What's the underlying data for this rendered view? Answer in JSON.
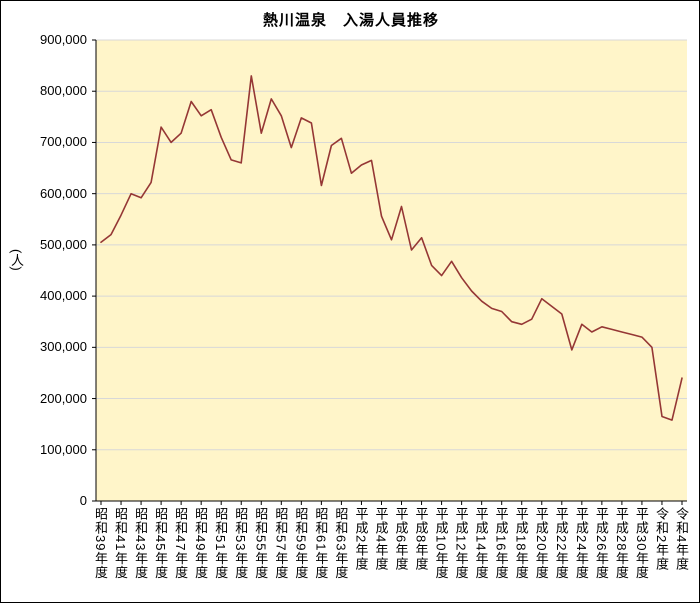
{
  "chart_data": {
    "type": "line",
    "title": "熱川温泉　入湯人員推移",
    "ylabel": "(人)",
    "ylim": [
      0,
      900000
    ],
    "ytick_step": 100000,
    "grid": true,
    "legend": "none",
    "plot_bg": "#FFF5C9",
    "grid_color": "#D8D8D8",
    "line_color": "#953735",
    "axis_color": "#000000",
    "y_tick_labels": [
      "900,000",
      "800,000",
      "700,000",
      "600,000",
      "500,000",
      "400,000",
      "300,000",
      "200,000",
      "100,000",
      "0"
    ],
    "label_every": 2,
    "x_tick_labels": [
      "昭和39年度",
      "昭和41年度",
      "昭和43年度",
      "昭和45年度",
      "昭和47年度",
      "昭和49年度",
      "昭和51年度",
      "昭和53年度",
      "昭和55年度",
      "昭和57年度",
      "昭和59年度",
      "昭和61年度",
      "昭和63年度",
      "平成2年度",
      "平成4年度",
      "平成6年度",
      "平成8年度",
      "平成10年度",
      "平成12年度",
      "平成14年度",
      "平成16年度",
      "平成18年度",
      "平成20年度",
      "平成22年度",
      "平成24年度",
      "平成26年度",
      "平成28年度",
      "平成30年度",
      "令和2年度",
      "令和4年度"
    ],
    "values": [
      505000,
      520000,
      558000,
      600000,
      592000,
      622000,
      730000,
      700000,
      718000,
      780000,
      752000,
      764000,
      710000,
      666000,
      660000,
      830000,
      718000,
      785000,
      752000,
      690000,
      748000,
      738000,
      616000,
      694000,
      708000,
      640000,
      656000,
      665000,
      556000,
      510000,
      575000,
      490000,
      514000,
      460000,
      440000,
      468000,
      436000,
      410000,
      390000,
      376000,
      370000,
      350000,
      345000,
      355000,
      395000,
      380000,
      365000,
      295000,
      345000,
      330000,
      340000,
      335000,
      330000,
      325000,
      320000,
      300000,
      165000,
      158000,
      240000
    ]
  }
}
